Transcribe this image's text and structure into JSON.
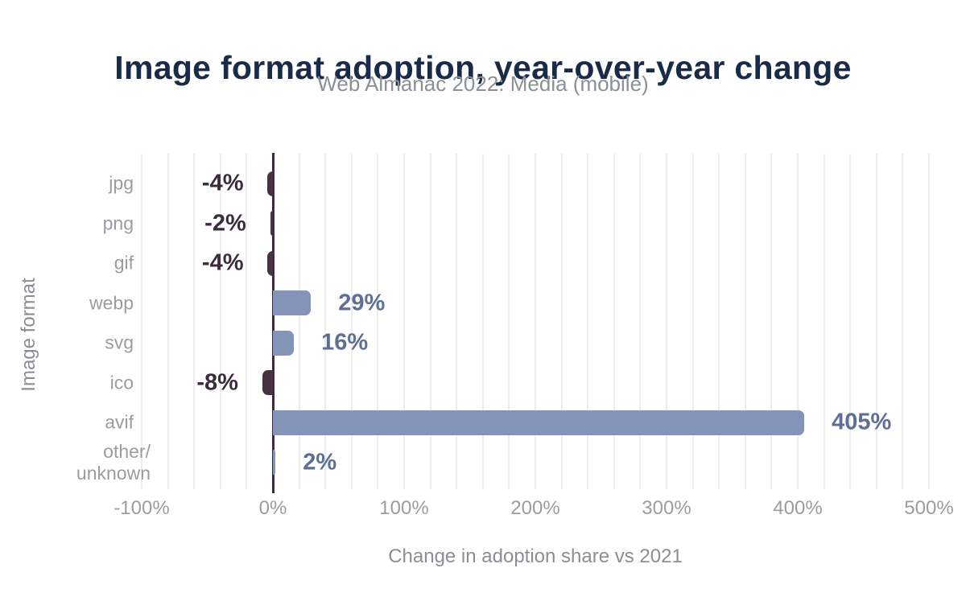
{
  "title": "Image format adoption, year-over-year change",
  "subtitle": "Web Almanac 2022: Media (mobile)",
  "chart_data": {
    "type": "bar",
    "orientation": "horizontal",
    "title": "Image format adoption, year-over-year change",
    "subtitle": "Web Almanac 2022: Media (mobile)",
    "categories": [
      "jpg",
      "png",
      "gif",
      "webp",
      "svg",
      "ico",
      "avif",
      "other/unknown"
    ],
    "values": [
      -4,
      -2,
      -4,
      29,
      16,
      -8,
      405,
      2
    ],
    "labels": [
      "-4%",
      "-2%",
      "-4%",
      "29%",
      "16%",
      "-8%",
      "405%",
      "2%"
    ],
    "xlabel": "Change in adoption share vs 2021",
    "ylabel": "Image format",
    "xlim": [
      -100,
      500
    ],
    "x_ticks": [
      "-100%",
      "0%",
      "100%",
      "200%",
      "300%",
      "400%",
      "500%"
    ],
    "x_tick_values": [
      -100,
      0,
      100,
      200,
      300,
      400,
      500
    ],
    "grid_interval": 20,
    "grid": "vertical-only",
    "legend": "none",
    "colors": {
      "positive_bar": "#8494b8",
      "negative_bar": "#463241",
      "positive_label": "#5d6f93",
      "negative_label": "#3c2a3e",
      "axis_line": "#3c2a3e",
      "gridline": "#ededed",
      "category_label": "#9a9da0",
      "tick_label": "#9a9da0",
      "axis_title": "#8b8f93",
      "title": "#1a2b49",
      "subtitle": "#8b9094",
      "background": "#ffffff"
    }
  }
}
